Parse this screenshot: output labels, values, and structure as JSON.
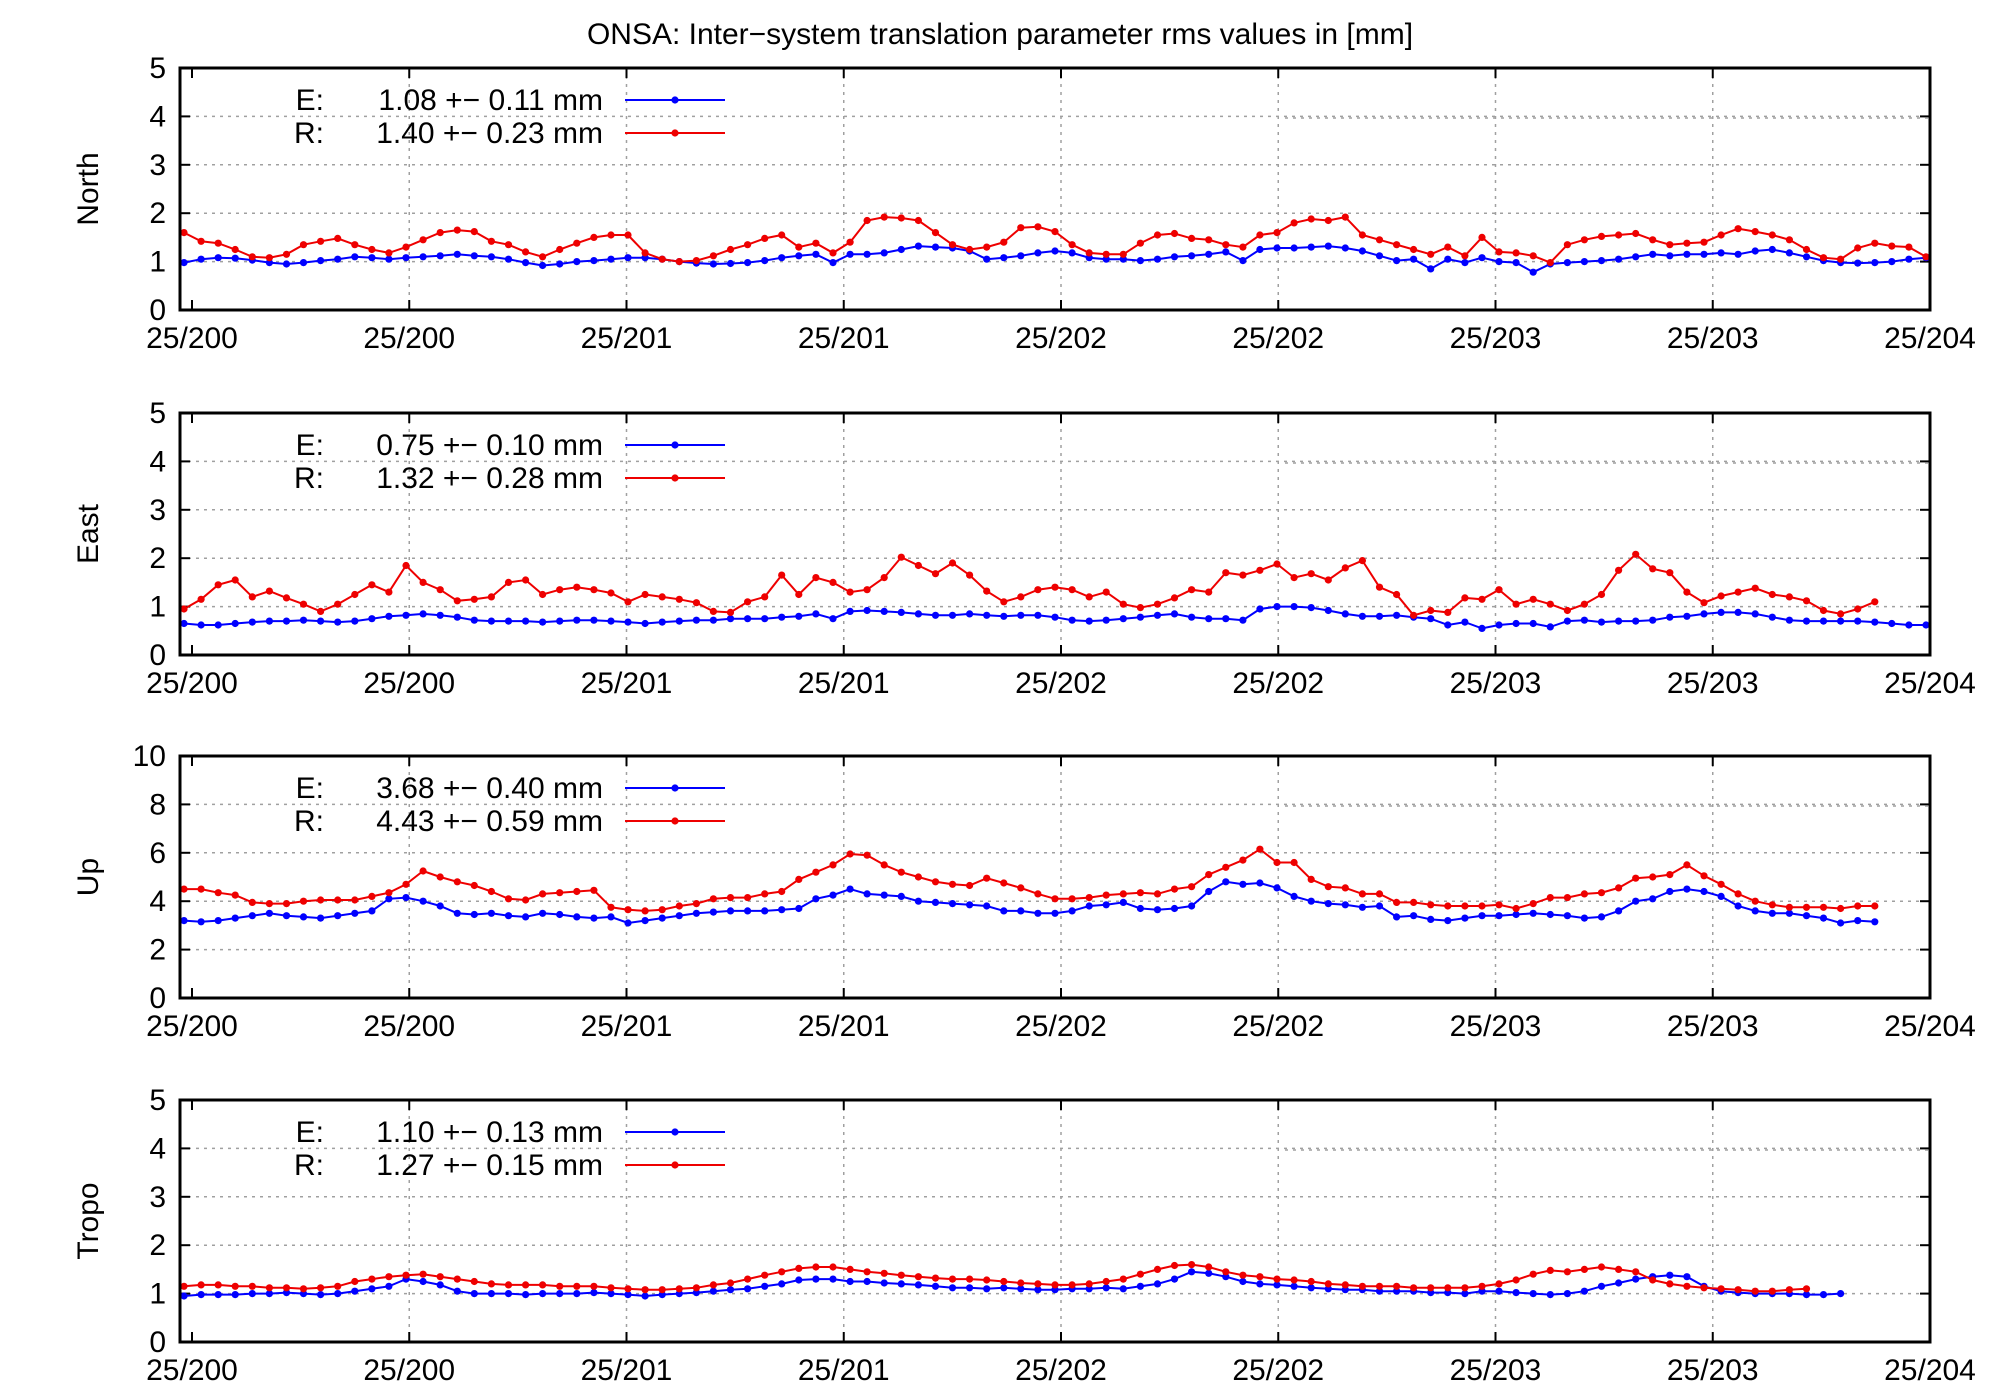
{
  "title": "ONSA: Inter−system translation parameter rms values in [mm]",
  "x_tick_labels": [
    "25/200",
    "25/200",
    "25/201",
    "25/201",
    "25/202",
    "25/202",
    "25/203",
    "25/203",
    "25/204"
  ],
  "colors": {
    "E": "#0000ff",
    "R": "#ee0000"
  },
  "chart_data": [
    {
      "type": "line",
      "ylabel": "North",
      "ylim": [
        0,
        5
      ],
      "yticks": [
        0,
        1,
        2,
        3,
        4,
        5
      ],
      "grid": true,
      "legend_position": "top-left",
      "legend": [
        {
          "name": "E:",
          "stat": "1.08 +− 0.11 mm"
        },
        {
          "name": "R:",
          "stat": "1.40 +− 0.23 mm"
        }
      ],
      "series": [
        {
          "name": "E",
          "values": [
            0.98,
            1.05,
            1.08,
            1.07,
            1.03,
            0.98,
            0.95,
            0.98,
            1.02,
            1.05,
            1.1,
            1.08,
            1.05,
            1.08,
            1.1,
            1.12,
            1.15,
            1.12,
            1.1,
            1.05,
            0.98,
            0.92,
            0.95,
            1.0,
            1.02,
            1.05,
            1.08,
            1.08,
            1.05,
            1.0,
            0.97,
            0.95,
            0.96,
            0.98,
            1.02,
            1.08,
            1.12,
            1.15,
            0.98,
            1.15,
            1.15,
            1.18,
            1.25,
            1.32,
            1.3,
            1.28,
            1.22,
            1.05,
            1.08,
            1.12,
            1.18,
            1.22,
            1.18,
            1.08,
            1.05,
            1.05,
            1.02,
            1.05,
            1.1,
            1.12,
            1.15,
            1.2,
            1.02,
            1.25,
            1.28,
            1.28,
            1.3,
            1.32,
            1.28,
            1.22,
            1.12,
            1.02,
            1.05,
            0.85,
            1.05,
            0.98,
            1.08,
            1.0,
            0.98,
            0.78,
            0.95,
            0.98,
            1.0,
            1.02,
            1.05,
            1.1,
            1.15,
            1.12,
            1.15,
            1.15,
            1.18,
            1.15,
            1.22,
            1.25,
            1.18,
            1.1,
            1.02,
            0.98,
            0.97,
            0.98,
            1.0,
            1.05,
            1.08
          ]
        },
        {
          "name": "R",
          "values": [
            1.6,
            1.42,
            1.38,
            1.25,
            1.1,
            1.08,
            1.15,
            1.35,
            1.42,
            1.48,
            1.35,
            1.25,
            1.18,
            1.3,
            1.45,
            1.6,
            1.65,
            1.62,
            1.42,
            1.35,
            1.2,
            1.1,
            1.25,
            1.38,
            1.5,
            1.55,
            1.55,
            1.18,
            1.05,
            1.0,
            1.02,
            1.12,
            1.25,
            1.35,
            1.48,
            1.55,
            1.3,
            1.38,
            1.18,
            1.4,
            1.85,
            1.92,
            1.9,
            1.85,
            1.6,
            1.35,
            1.25,
            1.3,
            1.4,
            1.7,
            1.72,
            1.62,
            1.35,
            1.18,
            1.15,
            1.15,
            1.38,
            1.55,
            1.58,
            1.48,
            1.45,
            1.35,
            1.3,
            1.55,
            1.6,
            1.8,
            1.88,
            1.85,
            1.92,
            1.55,
            1.45,
            1.35,
            1.25,
            1.15,
            1.3,
            1.12,
            1.5,
            1.2,
            1.18,
            1.12,
            0.98,
            1.35,
            1.45,
            1.52,
            1.55,
            1.58,
            1.45,
            1.35,
            1.38,
            1.4,
            1.55,
            1.68,
            1.62,
            1.55,
            1.45,
            1.25,
            1.08,
            1.05,
            1.28,
            1.38,
            1.32,
            1.3,
            1.1
          ]
        }
      ]
    },
    {
      "type": "line",
      "ylabel": "East",
      "ylim": [
        0,
        5
      ],
      "yticks": [
        0,
        1,
        2,
        3,
        4,
        5
      ],
      "grid": true,
      "legend_position": "top-left",
      "legend": [
        {
          "name": "E:",
          "stat": "0.75 +− 0.10 mm"
        },
        {
          "name": "R:",
          "stat": "1.32 +− 0.28 mm"
        }
      ],
      "series": [
        {
          "name": "E",
          "values": [
            0.65,
            0.62,
            0.62,
            0.65,
            0.68,
            0.7,
            0.7,
            0.72,
            0.7,
            0.68,
            0.7,
            0.75,
            0.8,
            0.82,
            0.85,
            0.82,
            0.78,
            0.72,
            0.7,
            0.7,
            0.7,
            0.68,
            0.7,
            0.72,
            0.72,
            0.7,
            0.68,
            0.65,
            0.68,
            0.7,
            0.72,
            0.72,
            0.75,
            0.75,
            0.75,
            0.78,
            0.8,
            0.85,
            0.75,
            0.9,
            0.92,
            0.9,
            0.88,
            0.85,
            0.82,
            0.82,
            0.85,
            0.82,
            0.8,
            0.82,
            0.82,
            0.78,
            0.72,
            0.7,
            0.72,
            0.75,
            0.78,
            0.82,
            0.85,
            0.78,
            0.75,
            0.75,
            0.72,
            0.95,
            1.0,
            1.0,
            0.98,
            0.92,
            0.85,
            0.8,
            0.8,
            0.82,
            0.78,
            0.75,
            0.62,
            0.68,
            0.55,
            0.62,
            0.65,
            0.65,
            0.58,
            0.7,
            0.72,
            0.68,
            0.7,
            0.7,
            0.72,
            0.78,
            0.8,
            0.85,
            0.88,
            0.88,
            0.85,
            0.78,
            0.72,
            0.7,
            0.7,
            0.7,
            0.7,
            0.68,
            0.65,
            0.62,
            0.62
          ]
        },
        {
          "name": "R",
          "values": [
            0.95,
            1.15,
            1.45,
            1.55,
            1.2,
            1.32,
            1.18,
            1.05,
            0.9,
            1.05,
            1.25,
            1.45,
            1.3,
            1.85,
            1.5,
            1.35,
            1.12,
            1.15,
            1.2,
            1.5,
            1.55,
            1.25,
            1.35,
            1.4,
            1.35,
            1.28,
            1.1,
            1.25,
            1.2,
            1.15,
            1.08,
            0.9,
            0.88,
            1.1,
            1.2,
            1.65,
            1.25,
            1.6,
            1.5,
            1.3,
            1.35,
            1.6,
            2.02,
            1.85,
            1.68,
            1.9,
            1.65,
            1.32,
            1.1,
            1.2,
            1.35,
            1.4,
            1.35,
            1.2,
            1.3,
            1.05,
            0.98,
            1.05,
            1.18,
            1.35,
            1.3,
            1.7,
            1.65,
            1.75,
            1.88,
            1.6,
            1.68,
            1.55,
            1.8,
            1.95,
            1.4,
            1.25,
            0.82,
            0.92,
            0.88,
            1.18,
            1.15,
            1.35,
            1.05,
            1.15,
            1.05,
            0.92,
            1.05,
            1.25,
            1.75,
            2.08,
            1.78,
            1.7,
            1.3,
            1.08,
            1.22,
            1.3,
            1.38,
            1.25,
            1.2,
            1.12,
            0.92,
            0.85,
            0.95,
            1.1
          ]
        }
      ]
    },
    {
      "type": "line",
      "ylabel": "Up",
      "ylim": [
        0,
        10
      ],
      "yticks": [
        0,
        2,
        4,
        6,
        8,
        10
      ],
      "grid": true,
      "legend_position": "top-left",
      "legend": [
        {
          "name": "E:",
          "stat": "3.68 +− 0.40 mm"
        },
        {
          "name": "R:",
          "stat": "4.43 +− 0.59 mm"
        }
      ],
      "series": [
        {
          "name": "E",
          "values": [
            3.2,
            3.15,
            3.2,
            3.3,
            3.4,
            3.5,
            3.4,
            3.35,
            3.3,
            3.4,
            3.5,
            3.6,
            4.1,
            4.15,
            4.0,
            3.8,
            3.5,
            3.45,
            3.5,
            3.4,
            3.35,
            3.5,
            3.45,
            3.35,
            3.3,
            3.35,
            3.1,
            3.2,
            3.3,
            3.4,
            3.5,
            3.55,
            3.6,
            3.6,
            3.6,
            3.65,
            3.7,
            4.1,
            4.25,
            4.5,
            4.3,
            4.25,
            4.2,
            4.0,
            3.95,
            3.9,
            3.85,
            3.8,
            3.6,
            3.6,
            3.5,
            3.5,
            3.6,
            3.8,
            3.85,
            3.95,
            3.7,
            3.65,
            3.7,
            3.8,
            4.4,
            4.8,
            4.7,
            4.75,
            4.55,
            4.2,
            4.0,
            3.9,
            3.85,
            3.75,
            3.8,
            3.35,
            3.4,
            3.25,
            3.2,
            3.3,
            3.4,
            3.4,
            3.45,
            3.5,
            3.45,
            3.4,
            3.3,
            3.35,
            3.6,
            4.0,
            4.1,
            4.4,
            4.5,
            4.4,
            4.2,
            3.8,
            3.6,
            3.5,
            3.5,
            3.4,
            3.3,
            3.1,
            3.2,
            3.15
          ]
        },
        {
          "name": "R",
          "values": [
            4.5,
            4.5,
            4.35,
            4.25,
            3.95,
            3.9,
            3.9,
            4.0,
            4.05,
            4.05,
            4.05,
            4.2,
            4.35,
            4.7,
            5.25,
            5.0,
            4.8,
            4.65,
            4.4,
            4.1,
            4.05,
            4.3,
            4.35,
            4.4,
            4.45,
            3.75,
            3.65,
            3.6,
            3.65,
            3.8,
            3.9,
            4.1,
            4.15,
            4.15,
            4.3,
            4.4,
            4.9,
            5.2,
            5.5,
            5.95,
            5.9,
            5.5,
            5.2,
            5.0,
            4.8,
            4.7,
            4.65,
            4.95,
            4.75,
            4.55,
            4.3,
            4.1,
            4.1,
            4.15,
            4.25,
            4.3,
            4.35,
            4.3,
            4.5,
            4.6,
            5.1,
            5.4,
            5.7,
            6.15,
            5.6,
            5.6,
            4.9,
            4.6,
            4.55,
            4.3,
            4.3,
            3.95,
            3.95,
            3.85,
            3.8,
            3.8,
            3.8,
            3.85,
            3.7,
            3.9,
            4.15,
            4.15,
            4.3,
            4.35,
            4.55,
            4.95,
            5.0,
            5.1,
            5.5,
            5.05,
            4.7,
            4.3,
            4.0,
            3.85,
            3.75,
            3.75,
            3.75,
            3.7,
            3.8,
            3.8
          ]
        }
      ]
    },
    {
      "type": "line",
      "ylabel": "Tropo",
      "ylim": [
        0,
        5
      ],
      "yticks": [
        0,
        1,
        2,
        3,
        4,
        5
      ],
      "grid": true,
      "legend_position": "top-left",
      "legend": [
        {
          "name": "E:",
          "stat": "1.10 +− 0.13 mm"
        },
        {
          "name": "R:",
          "stat": "1.27 +− 0.15 mm"
        }
      ],
      "series": [
        {
          "name": "E",
          "values": [
            0.95,
            0.98,
            0.98,
            0.98,
            1.0,
            1.0,
            1.02,
            1.0,
            0.98,
            1.0,
            1.05,
            1.1,
            1.15,
            1.3,
            1.25,
            1.18,
            1.05,
            1.0,
            1.0,
            1.0,
            0.98,
            1.0,
            1.0,
            1.0,
            1.02,
            1.0,
            0.98,
            0.95,
            0.98,
            1.0,
            1.02,
            1.05,
            1.08,
            1.1,
            1.15,
            1.2,
            1.28,
            1.3,
            1.3,
            1.25,
            1.25,
            1.22,
            1.2,
            1.18,
            1.15,
            1.12,
            1.12,
            1.1,
            1.12,
            1.1,
            1.08,
            1.08,
            1.1,
            1.1,
            1.12,
            1.1,
            1.15,
            1.2,
            1.3,
            1.45,
            1.42,
            1.35,
            1.25,
            1.2,
            1.18,
            1.15,
            1.12,
            1.1,
            1.08,
            1.08,
            1.05,
            1.05,
            1.05,
            1.02,
            1.02,
            1.0,
            1.05,
            1.05,
            1.02,
            1.0,
            0.98,
            1.0,
            1.05,
            1.15,
            1.22,
            1.3,
            1.35,
            1.38,
            1.35,
            1.15,
            1.05,
            1.02,
            1.0,
            1.0,
            1.0,
            0.98,
            0.98,
            1.0
          ]
        },
        {
          "name": "R",
          "values": [
            1.15,
            1.18,
            1.18,
            1.15,
            1.15,
            1.12,
            1.12,
            1.1,
            1.12,
            1.15,
            1.25,
            1.3,
            1.35,
            1.38,
            1.4,
            1.35,
            1.3,
            1.25,
            1.2,
            1.18,
            1.18,
            1.18,
            1.15,
            1.15,
            1.15,
            1.12,
            1.1,
            1.08,
            1.08,
            1.1,
            1.12,
            1.18,
            1.22,
            1.3,
            1.38,
            1.45,
            1.52,
            1.55,
            1.55,
            1.5,
            1.45,
            1.42,
            1.38,
            1.35,
            1.32,
            1.3,
            1.3,
            1.28,
            1.25,
            1.22,
            1.2,
            1.18,
            1.18,
            1.2,
            1.25,
            1.3,
            1.4,
            1.5,
            1.58,
            1.6,
            1.55,
            1.45,
            1.38,
            1.35,
            1.3,
            1.28,
            1.25,
            1.2,
            1.18,
            1.15,
            1.15,
            1.15,
            1.12,
            1.12,
            1.12,
            1.12,
            1.15,
            1.2,
            1.28,
            1.4,
            1.48,
            1.45,
            1.5,
            1.55,
            1.5,
            1.45,
            1.28,
            1.2,
            1.15,
            1.12,
            1.1,
            1.08,
            1.05,
            1.05,
            1.08,
            1.1
          ]
        }
      ]
    }
  ]
}
